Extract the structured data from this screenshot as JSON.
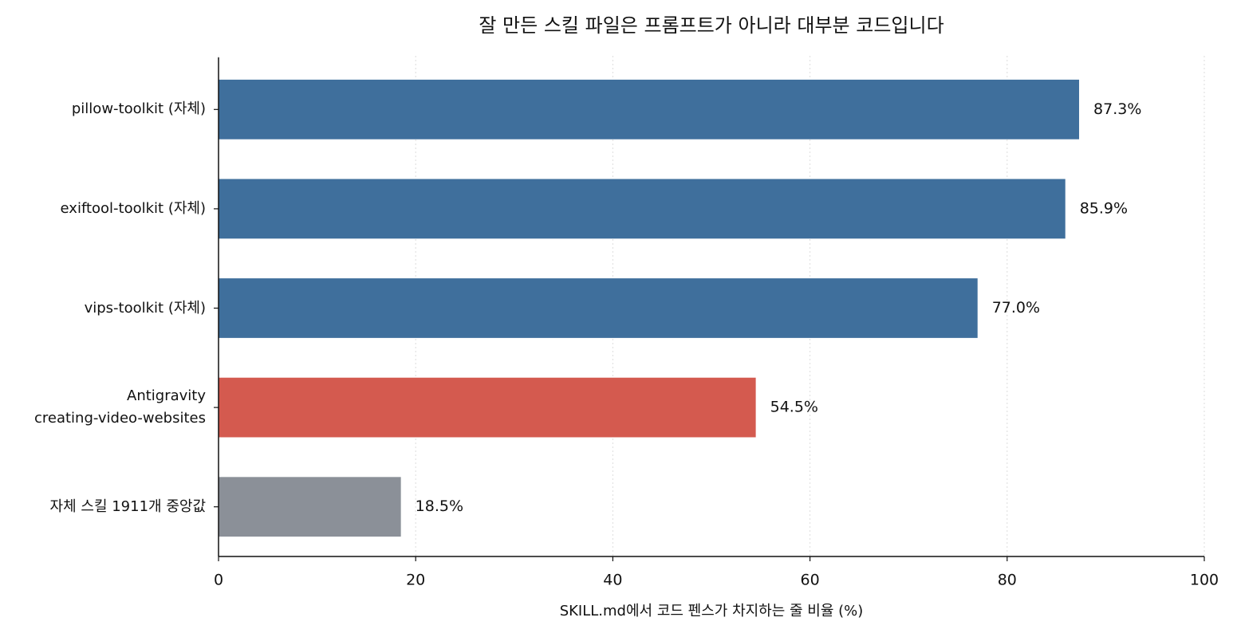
{
  "chart_data": {
    "type": "bar",
    "orientation": "horizontal",
    "title": "잘 만든 스킬 파일은 프롬프트가 아니라 대부분 코드입니다",
    "x_label": "SKILL.md에서 코드 펜스가 차지하는 줄 비율 (%)",
    "categories": [
      "pillow-toolkit (자체)",
      "exiftool-toolkit (자체)",
      "vips-toolkit (자체)",
      "Antigravity\ncreating-video-websites",
      "자체 스킬 1911개 중앙값"
    ],
    "values": [
      87.3,
      85.9,
      77.0,
      54.5,
      18.5
    ],
    "value_labels": [
      "87.3%",
      "85.9%",
      "77.0%",
      "54.5%",
      "18.5%"
    ],
    "colors": [
      "#3f6f9c",
      "#3f6f9c",
      "#3f6f9c",
      "#d45a4f",
      "#8b9098"
    ],
    "xlim": [
      0,
      100
    ],
    "xticks": [
      0,
      20,
      40,
      60,
      80,
      100
    ],
    "grid": true
  }
}
